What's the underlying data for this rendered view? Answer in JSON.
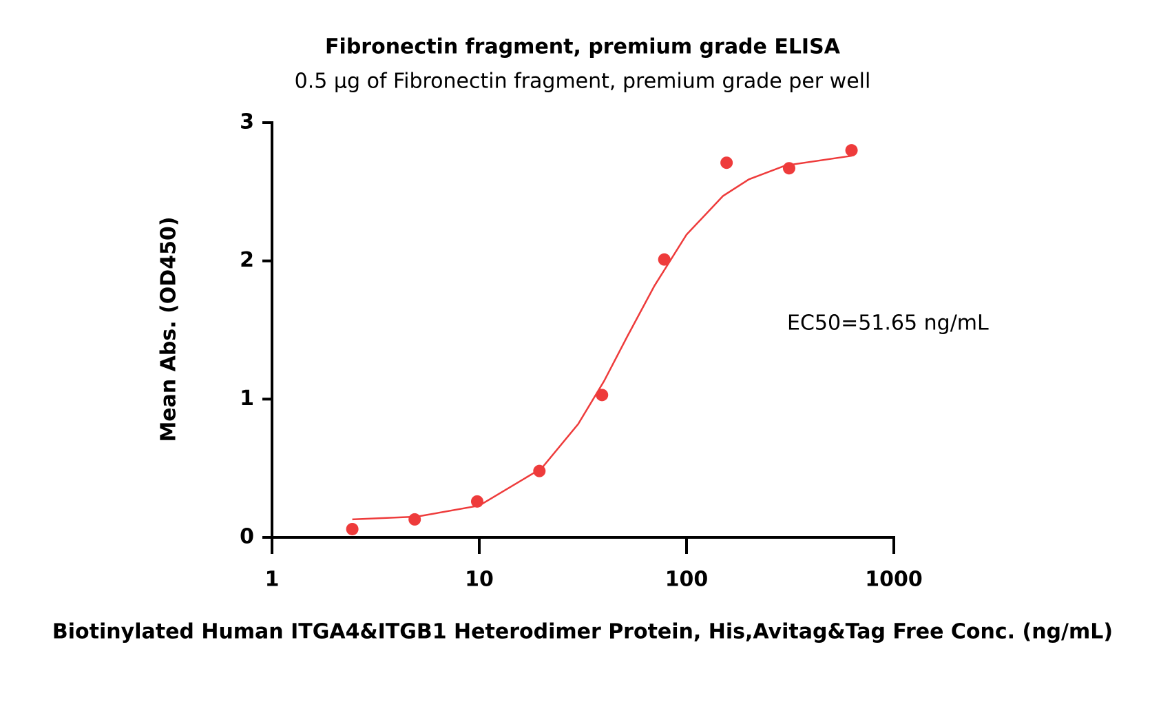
{
  "chart_data": {
    "type": "scatter",
    "title": "Fibronectin fragment, premium grade ELISA",
    "subtitle": "0.5 µg of Fibronectin fragment, premium grade per well",
    "x_label": "Biotinylated Human ITGA4&ITGB1 Heterodimer Protein, His,Avitag&Tag Free Conc. (ng/mL)",
    "y_label": "Mean Abs. (OD450)",
    "annotation": "EC50=51.65 ng/mL",
    "xscale": "log",
    "xlim": [
      1,
      1000
    ],
    "xticks": [
      1,
      10,
      100,
      1000
    ],
    "ylim": [
      0,
      3
    ],
    "yticks": [
      0,
      1,
      2,
      3
    ],
    "color": "#ee3b3b",
    "x": [
      2.44,
      4.88,
      9.77,
      19.5,
      39.1,
      78.1,
      156,
      312.5,
      625
    ],
    "values": [
      0.06,
      0.13,
      0.26,
      0.48,
      1.03,
      2.01,
      2.71,
      2.67,
      2.8
    ],
    "fit": {
      "x": [
        2.44,
        5,
        10,
        20,
        30,
        40,
        51.65,
        70,
        100,
        150,
        200,
        300,
        625
      ],
      "values": [
        0.13,
        0.15,
        0.23,
        0.5,
        0.82,
        1.13,
        1.45,
        1.82,
        2.19,
        2.47,
        2.59,
        2.69,
        2.76
      ]
    }
  }
}
